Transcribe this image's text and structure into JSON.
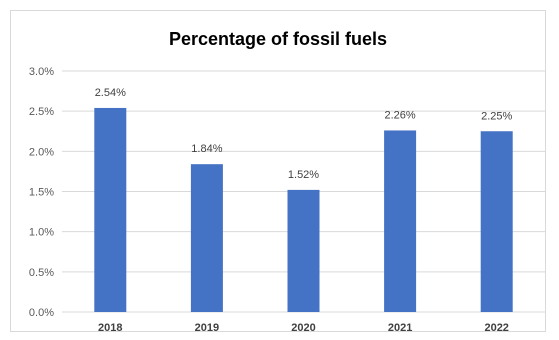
{
  "chart_data": {
    "type": "bar",
    "title": "Percentage of fossil fuels",
    "categories": [
      "2018",
      "2019",
      "2020",
      "2021",
      "2022"
    ],
    "values": [
      2.54,
      1.84,
      1.52,
      2.26,
      2.25
    ],
    "data_labels": [
      "2.54%",
      "1.84%",
      "1.52%",
      "2.26%",
      "2.25%"
    ],
    "y_ticks": [
      "0.0%",
      "0.5%",
      "1.0%",
      "1.5%",
      "2.0%",
      "2.5%",
      "3.0%"
    ],
    "ylim": [
      0,
      3.0
    ],
    "xlabel": "",
    "ylabel": "",
    "grid": true,
    "legend": "none",
    "bar_color": "#4472c4",
    "grid_color": "#d9d9d9"
  }
}
